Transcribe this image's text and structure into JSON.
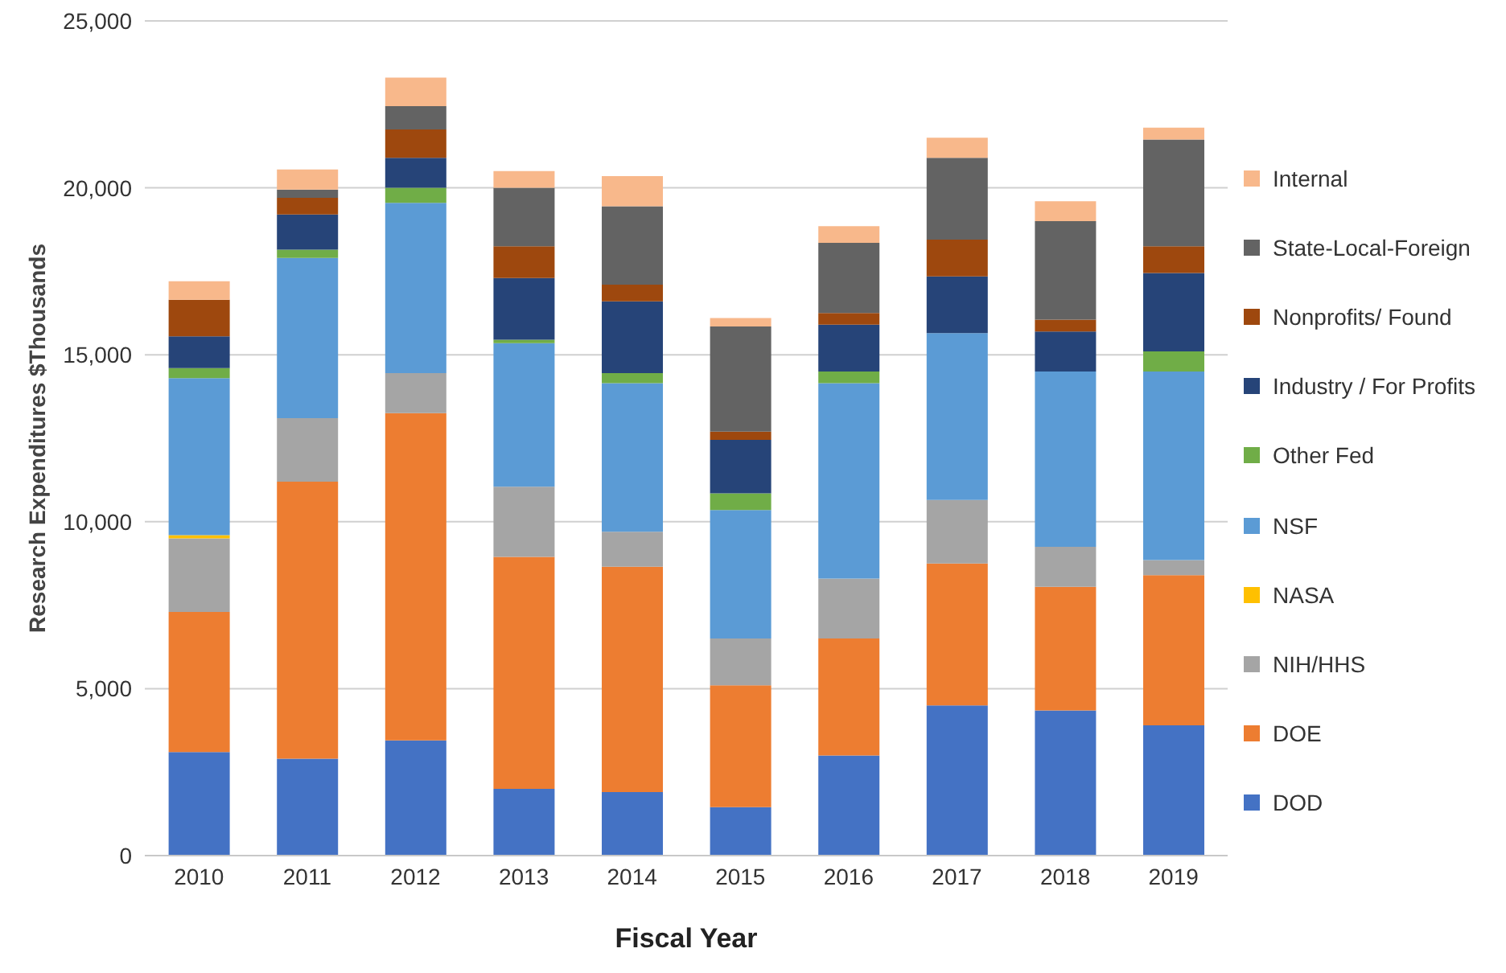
{
  "chart_data": {
    "type": "bar",
    "stacked": true,
    "xlabel": "Fiscal Year",
    "ylabel": "Research Expenditures $Thousands",
    "categories": [
      "2010",
      "2011",
      "2012",
      "2013",
      "2014",
      "2015",
      "2016",
      "2017",
      "2018",
      "2019"
    ],
    "series": [
      {
        "name": "DOD",
        "color": "#4472c4",
        "values": [
          3100,
          2900,
          3450,
          2000,
          1900,
          1450,
          3000,
          4500,
          4350,
          3900
        ]
      },
      {
        "name": "DOE",
        "color": "#ed7d31",
        "values": [
          4200,
          8300,
          9800,
          6950,
          6750,
          3650,
          3500,
          4250,
          3700,
          4500
        ]
      },
      {
        "name": "NIH/HHS",
        "color": "#a5a5a5",
        "values": [
          2200,
          1900,
          1200,
          2100,
          1050,
          1400,
          1800,
          1900,
          1200,
          450
        ]
      },
      {
        "name": "NASA",
        "color": "#ffc000",
        "values": [
          100,
          0,
          0,
          0,
          0,
          0,
          0,
          0,
          0,
          0
        ]
      },
      {
        "name": "NSF",
        "color": "#5b9bd5",
        "values": [
          4700,
          4800,
          5100,
          4300,
          4450,
          3850,
          5850,
          5000,
          5250,
          5650
        ]
      },
      {
        "name": "Other Fed",
        "color": "#70ad47",
        "values": [
          300,
          250,
          450,
          100,
          300,
          500,
          350,
          0,
          0,
          600
        ]
      },
      {
        "name": "Industry / For Profits",
        "color": "#264478",
        "values": [
          950,
          1050,
          900,
          1850,
          2150,
          1600,
          1400,
          1700,
          1200,
          2350
        ]
      },
      {
        "name": "Nonprofits/ Found",
        "color": "#9e480e",
        "values": [
          1100,
          500,
          850,
          950,
          500,
          250,
          350,
          1100,
          350,
          800
        ]
      },
      {
        "name": "State-Local-Foreign",
        "color": "#636363",
        "values": [
          0,
          250,
          700,
          1750,
          2350,
          3150,
          2100,
          2450,
          2950,
          3200
        ]
      },
      {
        "name": "Internal",
        "color": "#f8b88b",
        "values": [
          550,
          600,
          850,
          500,
          900,
          250,
          500,
          600,
          600,
          350
        ]
      }
    ],
    "ylim": [
      0,
      25000
    ],
    "yticks": [
      0,
      {
        "value": 5000,
        "label": "5,000"
      },
      {
        "value": 10000,
        "label": "10,000"
      },
      {
        "value": 15000,
        "label": "15,000"
      },
      {
        "value": 20000,
        "label": "20,000"
      },
      {
        "value": 25000,
        "label": "25,000"
      }
    ],
    "grid": "y",
    "legend": "right"
  }
}
